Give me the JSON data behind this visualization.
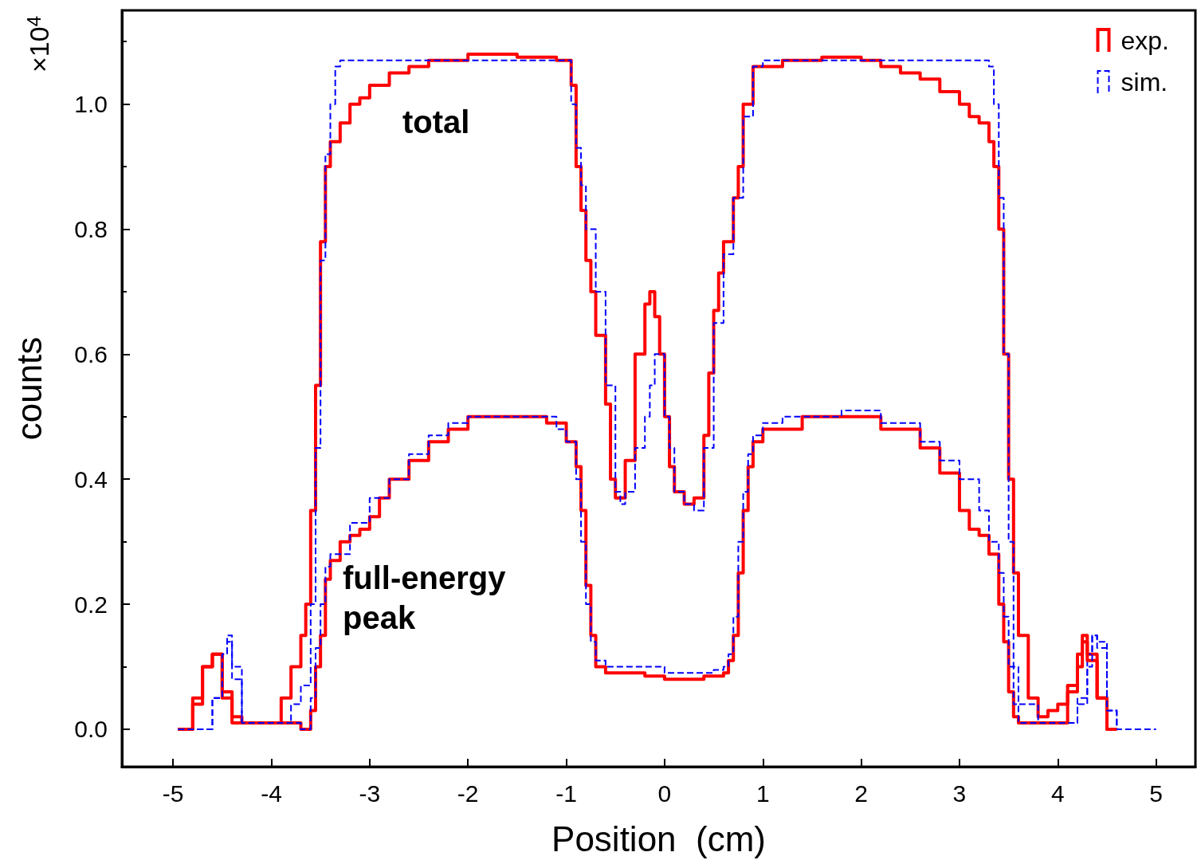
{
  "chart_data": {
    "type": "step",
    "xlabel": "Position  (cm)",
    "ylabel": "counts",
    "annotations": [
      "×10$^{4}$",
      "total",
      "full-energy\npeak"
    ],
    "xlim": [
      -5.52,
      5.4
    ],
    "ylim": [
      -0.06,
      1.15
    ],
    "xticks": [
      -5,
      -4,
      -3,
      -2,
      -1,
      0,
      1,
      2,
      3,
      4,
      5
    ],
    "yticks": [
      {
        "value": 0,
        "label": "0.0"
      },
      0.2,
      0.4,
      0.6,
      0.8,
      {
        "value": 1,
        "label": "1.0"
      }
    ],
    "legend": "top right",
    "marker": "none",
    "series": [
      {
        "name": "exp.",
        "color": "#ff0000",
        "line_style": "solid",
        "x": [
          -4.95,
          -4.8,
          -4.7,
          -4.6,
          -4.5,
          -4.4,
          -4.3,
          -4.0,
          -3.9,
          -3.8,
          -3.7,
          -3.65,
          -3.6,
          -3.55,
          -3.5,
          -3.45,
          -3.4,
          -3.3,
          -3.2,
          -3.1,
          -3.0,
          -2.8,
          -2.6,
          -2.4,
          -2.0,
          -1.5,
          -1.1,
          -0.95,
          -0.9,
          -0.85,
          -0.8,
          -0.75,
          -0.7,
          -0.6,
          -0.55,
          -0.5,
          -0.4,
          -0.3,
          -0.2,
          -0.15,
          -0.1,
          -0.05,
          0.0,
          0.05,
          0.1,
          0.2,
          0.3,
          0.4,
          0.45,
          0.5,
          0.55,
          0.6,
          0.7,
          0.75,
          0.8,
          0.9,
          1.2,
          1.6,
          2.0,
          2.2,
          2.4,
          2.6,
          2.8,
          3.0,
          3.1,
          3.2,
          3.3,
          3.35,
          3.4,
          3.45,
          3.5,
          3.55,
          3.6,
          3.7,
          3.8,
          3.9,
          4.0,
          4.1,
          4.2,
          4.25,
          4.3,
          4.4,
          4.5,
          4.6
        ],
        "values": [
          0,
          0.05,
          0.1,
          0.12,
          0.06,
          0.02,
          0.01,
          0.01,
          0.05,
          0.1,
          0.15,
          0.2,
          0.35,
          0.55,
          0.78,
          0.9,
          0.94,
          0.97,
          1.0,
          1.01,
          1.03,
          1.05,
          1.06,
          1.07,
          1.08,
          1.075,
          1.07,
          1.03,
          0.9,
          0.83,
          0.75,
          0.7,
          0.63,
          0.52,
          0.4,
          0.37,
          0.43,
          0.6,
          0.68,
          0.7,
          0.66,
          0.6,
          0.5,
          0.42,
          0.38,
          0.36,
          0.37,
          0.47,
          0.57,
          0.67,
          0.73,
          0.78,
          0.85,
          0.9,
          1.0,
          1.06,
          1.07,
          1.075,
          1.07,
          1.06,
          1.05,
          1.04,
          1.02,
          1.0,
          0.98,
          0.97,
          0.94,
          0.9,
          0.8,
          0.6,
          0.4,
          0.25,
          0.15,
          0.05,
          0.02,
          0.03,
          0.04,
          0.07,
          0.12,
          0.15,
          0.12,
          0.05,
          0,
          0
        ]
      },
      {
        "name": "sim.",
        "color": "#0000ff",
        "line_style": "dashed",
        "x": [
          -4.95,
          -4.6,
          -4.5,
          -4.45,
          -4.4,
          -4.3,
          -4.0,
          -3.8,
          -3.7,
          -3.6,
          -3.55,
          -3.5,
          -3.45,
          -3.4,
          -3.35,
          -3.3,
          -1.0,
          -0.95,
          -0.9,
          -0.85,
          -0.8,
          -0.7,
          -0.6,
          -0.5,
          -0.45,
          -0.4,
          -0.3,
          -0.2,
          -0.15,
          -0.1,
          0.0,
          0.05,
          0.1,
          0.2,
          0.3,
          0.4,
          0.5,
          0.6,
          0.7,
          0.8,
          0.9,
          1.0,
          3.3,
          3.35,
          3.4,
          3.45,
          3.5,
          3.55,
          3.6,
          3.8,
          4.1,
          4.2,
          4.3,
          4.35,
          4.4,
          4.5,
          4.6,
          5.0
        ],
        "values": [
          0,
          0.05,
          0.12,
          0.15,
          0.1,
          0.01,
          0.01,
          0.04,
          0.07,
          0.2,
          0.45,
          0.75,
          0.92,
          1.0,
          1.06,
          1.07,
          1.07,
          1.0,
          0.93,
          0.87,
          0.8,
          0.7,
          0.55,
          0.38,
          0.36,
          0.38,
          0.45,
          0.5,
          0.55,
          0.6,
          0.5,
          0.45,
          0.38,
          0.36,
          0.35,
          0.45,
          0.65,
          0.76,
          0.85,
          0.98,
          1.06,
          1.07,
          1.06,
          1.0,
          0.85,
          0.6,
          0.3,
          0.1,
          0.04,
          0.01,
          0.01,
          0.05,
          0.12,
          0.15,
          0.13,
          0.03,
          0,
          0
        ]
      },
      {
        "color": "#ff0000",
        "line_style": "solid",
        "x": [
          -4.95,
          -4.8,
          -4.7,
          -4.6,
          -4.5,
          -4.4,
          -3.7,
          -3.6,
          -3.55,
          -3.5,
          -3.45,
          -3.4,
          -3.3,
          -3.2,
          -3.1,
          -3.0,
          -2.9,
          -2.8,
          -2.6,
          -2.4,
          -2.2,
          -2.0,
          -1.6,
          -1.2,
          -1.0,
          -0.9,
          -0.85,
          -0.8,
          -0.75,
          -0.7,
          -0.6,
          -0.2,
          0,
          0.4,
          0.6,
          0.65,
          0.7,
          0.75,
          0.8,
          0.85,
          0.9,
          1.0,
          1.4,
          1.8,
          2.2,
          2.6,
          2.8,
          3.0,
          3.1,
          3.2,
          3.3,
          3.4,
          3.45,
          3.5,
          3.55,
          3.6,
          4.0,
          4.1,
          4.2,
          4.25,
          4.3,
          4.4,
          4.5,
          4.6
        ],
        "values": [
          0,
          0.04,
          0.1,
          0.12,
          0.05,
          0.01,
          0,
          0.03,
          0.1,
          0.15,
          0.24,
          0.27,
          0.3,
          0.31,
          0.32,
          0.34,
          0.37,
          0.4,
          0.43,
          0.46,
          0.48,
          0.5,
          0.5,
          0.49,
          0.46,
          0.42,
          0.35,
          0.23,
          0.15,
          0.1,
          0.09,
          0.085,
          0.08,
          0.085,
          0.09,
          0.11,
          0.15,
          0.25,
          0.35,
          0.42,
          0.46,
          0.48,
          0.5,
          0.5,
          0.48,
          0.45,
          0.41,
          0.35,
          0.32,
          0.31,
          0.28,
          0.2,
          0.14,
          0.06,
          0.02,
          0.01,
          0.01,
          0.06,
          0.1,
          0.14,
          0.11,
          0.05,
          0,
          0
        ]
      },
      {
        "color": "#0000ff",
        "line_style": "dashed",
        "x": [
          -4.95,
          -4.6,
          -4.5,
          -4.45,
          -4.4,
          -4.3,
          -3.7,
          -3.6,
          -3.55,
          -3.5,
          -3.45,
          -3.4,
          -3.2,
          -3.0,
          -2.8,
          -2.6,
          -2.4,
          -2.2,
          -2.0,
          -1.4,
          -1.1,
          -1.0,
          -0.9,
          -0.85,
          -0.8,
          -0.75,
          -0.7,
          -0.6,
          0.0,
          0.5,
          0.6,
          0.65,
          0.7,
          0.75,
          0.8,
          0.85,
          0.9,
          1.0,
          1.2,
          1.8,
          2.2,
          2.6,
          2.8,
          3.0,
          3.2,
          3.3,
          3.4,
          3.45,
          3.5,
          3.55,
          3.6,
          4.1,
          4.2,
          4.3,
          4.35,
          4.4,
          4.5,
          4.6
        ],
        "values": [
          0,
          0.05,
          0.12,
          0.14,
          0.08,
          0.01,
          0,
          0.05,
          0.13,
          0.2,
          0.26,
          0.28,
          0.33,
          0.37,
          0.4,
          0.44,
          0.47,
          0.49,
          0.5,
          0.5,
          0.48,
          0.46,
          0.4,
          0.3,
          0.2,
          0.14,
          0.11,
          0.1,
          0.09,
          0.095,
          0.1,
          0.12,
          0.18,
          0.3,
          0.38,
          0.44,
          0.47,
          0.49,
          0.5,
          0.51,
          0.49,
          0.46,
          0.43,
          0.4,
          0.35,
          0.3,
          0.25,
          0.18,
          0.1,
          0.04,
          0.01,
          0.01,
          0.04,
          0.1,
          0.15,
          0.14,
          0.03,
          0
        ]
      }
    ]
  }
}
